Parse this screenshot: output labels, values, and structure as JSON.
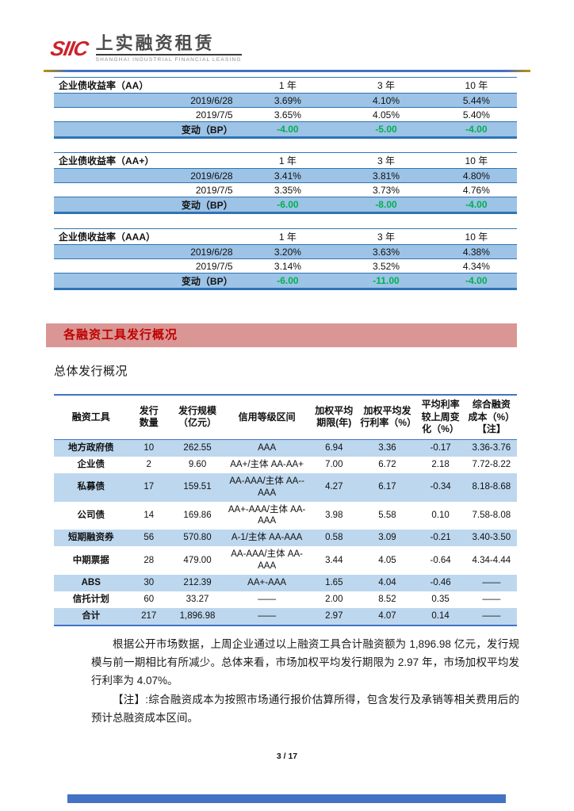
{
  "logo": {
    "mark": "SIIC",
    "name": "上实融资租赁",
    "subtitle": "SHANGHAI INDUSTRIAL FINANCIAL LEASING"
  },
  "yield_tables": [
    {
      "title": "企业债收益率（AA）",
      "columns": [
        "1 年",
        "3 年",
        "10 年"
      ],
      "rows": [
        {
          "label": "2019/6/28",
          "values": [
            "3.69%",
            "4.10%",
            "5.44%"
          ],
          "type": "data"
        },
        {
          "label": "2019/7/5",
          "values": [
            "3.65%",
            "4.05%",
            "5.40%"
          ],
          "type": "data"
        },
        {
          "label": "变动（BP）",
          "values": [
            "-4.00",
            "-5.00",
            "-4.00"
          ],
          "type": "change"
        }
      ]
    },
    {
      "title": "企业债收益率（AA+）",
      "columns": [
        "1 年",
        "3 年",
        "10 年"
      ],
      "rows": [
        {
          "label": "2019/6/28",
          "values": [
            "3.41%",
            "3.81%",
            "4.80%"
          ],
          "type": "data"
        },
        {
          "label": "2019/7/5",
          "values": [
            "3.35%",
            "3.73%",
            "4.76%"
          ],
          "type": "data"
        },
        {
          "label": "变动（BP）",
          "values": [
            "-6.00",
            "-8.00",
            "-4.00"
          ],
          "type": "change"
        }
      ]
    },
    {
      "title": "企业债收益率（AAA）",
      "columns": [
        "1 年",
        "3 年",
        "10 年"
      ],
      "rows": [
        {
          "label": "2019/6/28",
          "values": [
            "3.20%",
            "3.63%",
            "4.38%"
          ],
          "type": "data"
        },
        {
          "label": "2019/7/5",
          "values": [
            "3.14%",
            "3.52%",
            "4.34%"
          ],
          "type": "data"
        },
        {
          "label": "变动（BP）",
          "values": [
            "-6.00",
            "-11.00",
            "-4.00"
          ],
          "type": "change"
        }
      ]
    }
  ],
  "section_banner": "各融资工具发行概况",
  "section_heading": "总体发行概况",
  "issuance_table": {
    "columns": [
      "融资工具",
      "发行\n数量",
      "发行规模\n（亿元）",
      "信用等级区间",
      "加权平均\n期限(年)",
      "加权平均发\n行利率（%）",
      "平均利率\n较上周变\n化（%）",
      "综合融资\n成本（%）\n【注】"
    ],
    "rows": [
      [
        "地方政府债",
        "10",
        "262.55",
        "AAA",
        "6.94",
        "3.36",
        "-0.17",
        "3.36-3.76"
      ],
      [
        "企业债",
        "2",
        "9.60",
        "AA+/主体 AA-AA+",
        "7.00",
        "6.72",
        "2.18",
        "7.72-8.22"
      ],
      [
        "私募债",
        "17",
        "159.51",
        "AA-AAA/主体 AA--AAA",
        "4.27",
        "6.17",
        "-0.34",
        "8.18-8.68"
      ],
      [
        "公司债",
        "14",
        "169.86",
        "AA+-AAA/主体 AA-AAA",
        "3.98",
        "5.58",
        "0.10",
        "7.58-8.08"
      ],
      [
        "短期融资券",
        "56",
        "570.80",
        "A-1/主体 AA-AAA",
        "0.58",
        "3.09",
        "-0.21",
        "3.40-3.50"
      ],
      [
        "中期票据",
        "28",
        "479.00",
        "AA-AAA/主体 AA-AAA",
        "3.44",
        "4.05",
        "-0.64",
        "4.34-4.44"
      ],
      [
        "ABS",
        "30",
        "212.39",
        "AA+-AAA",
        "1.65",
        "4.04",
        "-0.46",
        "——"
      ],
      [
        "信托计划",
        "60",
        "33.27",
        "——",
        "2.00",
        "8.52",
        "0.35",
        "——"
      ],
      [
        "合计",
        "217",
        "1,896.98",
        "——",
        "2.97",
        "4.07",
        "0.14",
        "——"
      ]
    ]
  },
  "paragraphs": [
    "根据公开市场数据，上周企业通过以上融资工具合计融资额为 1,896.98 亿元，发行规模与前一期相比有所减少。总体来看，市场加权平均发行期限为 2.97 年，市场加权平均发行利率为 4.07%。",
    "【注】:综合融资成本为按照市场通行报价估算所得，包含发行及承销等相关费用后的预计总融资成本区间。"
  ],
  "footer": {
    "page_number": "3 / 17"
  },
  "colors": {
    "yield_row_blue": "#9dc3e6",
    "yield_border": "#2e74b5",
    "issuance_row_blue": "#bdd7ee",
    "issuance_border": "#4472c4",
    "change_green": "#00b050",
    "banner_bg": "#d99694",
    "banner_text": "#c00000",
    "footer_bar": "#4472c4",
    "logo_red": "#cc2229"
  }
}
